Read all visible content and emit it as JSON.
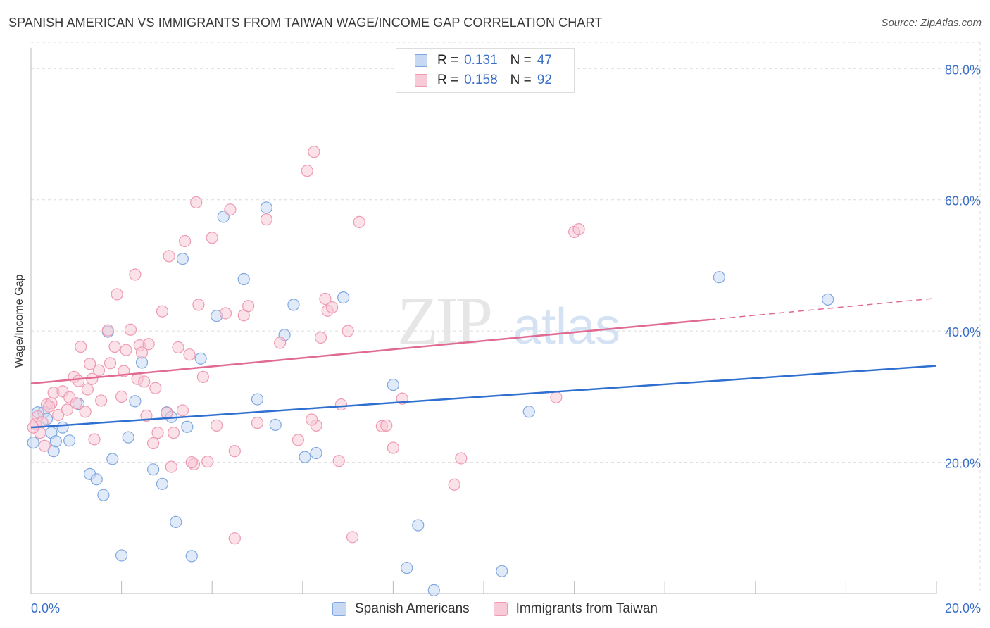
{
  "header": {
    "title": "SPANISH AMERICAN VS IMMIGRANTS FROM TAIWAN WAGE/INCOME GAP CORRELATION CHART",
    "source": "Source: ZipAtlas.com"
  },
  "watermark": {
    "zip": "ZIP",
    "atlas": "atlas"
  },
  "legend": {
    "r_label": "R =",
    "n_label": "N =",
    "items": [
      {
        "r": "0.131",
        "n": "47"
      },
      {
        "r": "0.158",
        "n": "92"
      }
    ]
  },
  "colors": {
    "blue_fill": "#c7d9f2",
    "blue_stroke": "#7fa8e0",
    "blue_line": "#2e6fd0",
    "pink_fill": "#f8c9d6",
    "pink_stroke": "#ee9ab3",
    "pink_line": "#e06a92",
    "axis_text": "#3a6fc9",
    "grid": "#dcdcdc"
  },
  "chart_data": {
    "type": "scatter",
    "title": "SPANISH AMERICAN VS IMMIGRANTS FROM TAIWAN WAGE/INCOME GAP CORRELATION CHART",
    "xlabel": "",
    "ylabel": "Wage/Income Gap",
    "xlim": [
      0,
      20
    ],
    "ylim": [
      0,
      84
    ],
    "x_tick_labels": [
      "0.0%",
      "20.0%"
    ],
    "y_ticks": [
      20,
      40,
      60,
      80
    ],
    "y_tick_labels": [
      "20.0%",
      "40.0%",
      "60.0%",
      "80.0%"
    ],
    "grid": true,
    "legend_position": "top-center",
    "series": [
      {
        "name": "Spanish Americans",
        "r": 0.131,
        "n": 47,
        "trend": {
          "x0": 0,
          "y0": 25.3,
          "x1": 20,
          "y1": 34.7,
          "dashed_from": null
        },
        "points": [
          [
            0.05,
            23.0
          ],
          [
            0.15,
            27.6
          ],
          [
            0.28,
            27.6
          ],
          [
            0.35,
            26.6
          ],
          [
            0.45,
            24.5
          ],
          [
            0.5,
            21.7
          ],
          [
            0.55,
            23.2
          ],
          [
            0.7,
            25.3
          ],
          [
            0.85,
            23.3
          ],
          [
            1.05,
            28.9
          ],
          [
            1.3,
            18.2
          ],
          [
            1.45,
            17.4
          ],
          [
            1.6,
            15.0
          ],
          [
            1.7,
            39.9
          ],
          [
            1.8,
            20.5
          ],
          [
            2.0,
            5.8
          ],
          [
            2.15,
            23.8
          ],
          [
            2.3,
            29.3
          ],
          [
            2.45,
            35.2
          ],
          [
            2.7,
            18.9
          ],
          [
            2.9,
            16.7
          ],
          [
            3.0,
            27.6
          ],
          [
            3.1,
            26.9
          ],
          [
            3.2,
            10.9
          ],
          [
            3.35,
            51.0
          ],
          [
            3.45,
            25.4
          ],
          [
            3.55,
            5.7
          ],
          [
            3.75,
            35.8
          ],
          [
            4.1,
            42.3
          ],
          [
            4.25,
            57.4
          ],
          [
            4.7,
            47.9
          ],
          [
            5.0,
            29.6
          ],
          [
            5.2,
            58.8
          ],
          [
            5.4,
            25.7
          ],
          [
            5.6,
            39.4
          ],
          [
            5.8,
            44.0
          ],
          [
            6.05,
            20.8
          ],
          [
            6.3,
            21.4
          ],
          [
            6.9,
            45.1
          ],
          [
            8.0,
            31.8
          ],
          [
            8.3,
            3.9
          ],
          [
            8.55,
            10.4
          ],
          [
            8.9,
            0.5
          ],
          [
            10.4,
            3.4
          ],
          [
            11.0,
            27.7
          ],
          [
            15.2,
            48.2
          ],
          [
            17.6,
            44.8
          ]
        ]
      },
      {
        "name": "Immigrants from Taiwan",
        "r": 0.158,
        "n": 92,
        "trend": {
          "x0": 0,
          "y0": 32.0,
          "x1": 20,
          "y1": 45.0,
          "dashed_from": 15.0
        },
        "points": [
          [
            0.1,
            25.8
          ],
          [
            0.15,
            27.0
          ],
          [
            0.2,
            24.5
          ],
          [
            0.25,
            26.1
          ],
          [
            0.3,
            22.5
          ],
          [
            0.35,
            28.8
          ],
          [
            0.45,
            29.0
          ],
          [
            0.5,
            30.6
          ],
          [
            0.6,
            27.2
          ],
          [
            0.7,
            30.8
          ],
          [
            0.8,
            28.0
          ],
          [
            0.85,
            29.9
          ],
          [
            0.95,
            33.0
          ],
          [
            1.05,
            32.4
          ],
          [
            1.1,
            37.6
          ],
          [
            1.2,
            27.7
          ],
          [
            1.25,
            31.1
          ],
          [
            1.3,
            35.0
          ],
          [
            1.35,
            32.7
          ],
          [
            1.4,
            23.5
          ],
          [
            1.5,
            34.0
          ],
          [
            1.55,
            29.4
          ],
          [
            1.7,
            40.1
          ],
          [
            1.75,
            35.1
          ],
          [
            1.85,
            37.6
          ],
          [
            1.9,
            45.6
          ],
          [
            2.0,
            30.0
          ],
          [
            2.05,
            33.9
          ],
          [
            2.1,
            37.1
          ],
          [
            2.2,
            40.2
          ],
          [
            2.3,
            48.6
          ],
          [
            2.35,
            32.7
          ],
          [
            2.4,
            37.8
          ],
          [
            2.45,
            36.7
          ],
          [
            2.5,
            32.3
          ],
          [
            2.6,
            38.0
          ],
          [
            2.7,
            22.9
          ],
          [
            2.75,
            31.3
          ],
          [
            2.8,
            24.5
          ],
          [
            2.9,
            43.0
          ],
          [
            3.0,
            27.5
          ],
          [
            3.05,
            51.4
          ],
          [
            3.1,
            19.3
          ],
          [
            3.15,
            24.5
          ],
          [
            3.25,
            37.5
          ],
          [
            3.35,
            27.9
          ],
          [
            3.4,
            53.7
          ],
          [
            3.5,
            36.4
          ],
          [
            3.6,
            19.7
          ],
          [
            3.65,
            59.6
          ],
          [
            3.7,
            44.0
          ],
          [
            3.8,
            33.0
          ],
          [
            3.9,
            20.1
          ],
          [
            4.0,
            54.2
          ],
          [
            4.1,
            25.6
          ],
          [
            4.3,
            42.7
          ],
          [
            4.4,
            58.5
          ],
          [
            4.5,
            21.7
          ],
          [
            4.5,
            8.4
          ],
          [
            4.7,
            42.4
          ],
          [
            4.8,
            43.8
          ],
          [
            5.0,
            26.0
          ],
          [
            5.2,
            57.0
          ],
          [
            5.5,
            38.2
          ],
          [
            5.9,
            23.4
          ],
          [
            6.1,
            64.4
          ],
          [
            6.25,
            67.3
          ],
          [
            6.3,
            25.6
          ],
          [
            6.4,
            39.0
          ],
          [
            6.5,
            44.9
          ],
          [
            6.55,
            43.1
          ],
          [
            6.65,
            43.6
          ],
          [
            6.8,
            20.2
          ],
          [
            6.85,
            28.8
          ],
          [
            7.0,
            40.0
          ],
          [
            7.1,
            8.6
          ],
          [
            7.25,
            56.6
          ],
          [
            7.75,
            25.5
          ],
          [
            7.85,
            25.6
          ],
          [
            8.0,
            22.2
          ],
          [
            8.2,
            29.7
          ],
          [
            9.35,
            16.6
          ],
          [
            9.5,
            20.6
          ],
          [
            11.6,
            29.9
          ],
          [
            12.0,
            55.1
          ],
          [
            12.1,
            55.5
          ],
          [
            0.05,
            25.3
          ],
          [
            0.4,
            28.5
          ],
          [
            1.0,
            29.0
          ],
          [
            2.55,
            27.1
          ],
          [
            3.55,
            20.0
          ],
          [
            6.2,
            26.5
          ]
        ]
      }
    ]
  },
  "bottom_legend": {
    "items": [
      "Spanish Americans",
      "Immigrants from Taiwan"
    ]
  }
}
